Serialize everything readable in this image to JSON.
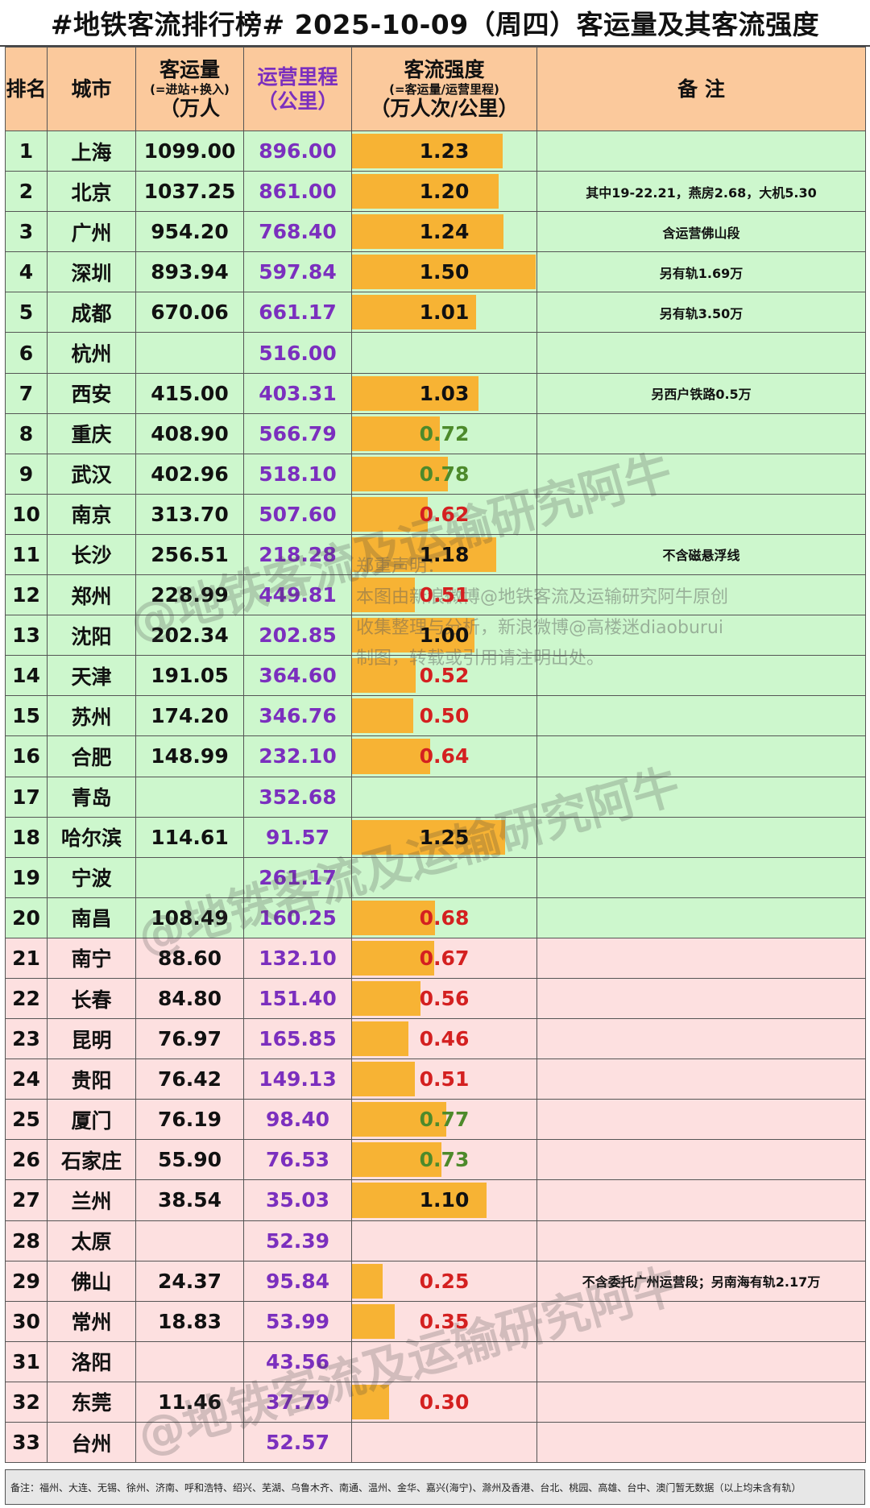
{
  "title": "#地铁客流排行榜# 2025-10-09（周四）客运量及其客流强度",
  "header": {
    "rank": "排名",
    "city": "城市",
    "ridership_l1": "客运量",
    "ridership_l2": "(=进站+换入)",
    "ridership_l3": "（万人",
    "length_l1": "运营里程",
    "length_l2": "（公里）",
    "intensity_l1": "客流强度",
    "intensity_l2": "(=客运量/运营里程)",
    "intensity_l3": "（万人次/公里）",
    "note": "备 注"
  },
  "colors": {
    "bar": "#f7b334",
    "header_bg": "#fbc99c",
    "group_top20": "#cdf7cd",
    "group_rest": "#fde0e0",
    "length_text": "#7b2fbe",
    "intensity_high": "#111111",
    "intensity_mid": "#4d8a2b",
    "intensity_low": "#d42020"
  },
  "chart_data": {
    "type": "table",
    "columns": [
      "排名",
      "城市",
      "客运量",
      "运营里程",
      "客流强度",
      "备注"
    ],
    "rows": [
      {
        "rank": "1",
        "city": "上海",
        "ridership": "1099.00",
        "length": "896.00",
        "intensity": "1.23",
        "note": ""
      },
      {
        "rank": "2",
        "city": "北京",
        "ridership": "1037.25",
        "length": "861.00",
        "intensity": "1.20",
        "note": "其中19-22.21，燕房2.68，大机5.30"
      },
      {
        "rank": "3",
        "city": "广州",
        "ridership": "954.20",
        "length": "768.40",
        "intensity": "1.24",
        "note": "含运营佛山段"
      },
      {
        "rank": "4",
        "city": "深圳",
        "ridership": "893.94",
        "length": "597.84",
        "intensity": "1.50",
        "note": "另有轨1.69万"
      },
      {
        "rank": "5",
        "city": "成都",
        "ridership": "670.06",
        "length": "661.17",
        "intensity": "1.01",
        "note": "另有轨3.50万"
      },
      {
        "rank": "6",
        "city": "杭州",
        "ridership": "",
        "length": "516.00",
        "intensity": "",
        "note": ""
      },
      {
        "rank": "7",
        "city": "西安",
        "ridership": "415.00",
        "length": "403.31",
        "intensity": "1.03",
        "note": "另西户铁路0.5万"
      },
      {
        "rank": "8",
        "city": "重庆",
        "ridership": "408.90",
        "length": "566.79",
        "intensity": "0.72",
        "note": ""
      },
      {
        "rank": "9",
        "city": "武汉",
        "ridership": "402.96",
        "length": "518.10",
        "intensity": "0.78",
        "note": ""
      },
      {
        "rank": "10",
        "city": "南京",
        "ridership": "313.70",
        "length": "507.60",
        "intensity": "0.62",
        "note": ""
      },
      {
        "rank": "11",
        "city": "长沙",
        "ridership": "256.51",
        "length": "218.28",
        "intensity": "1.18",
        "note": "不含磁悬浮线"
      },
      {
        "rank": "12",
        "city": "郑州",
        "ridership": "228.99",
        "length": "449.81",
        "intensity": "0.51",
        "note": ""
      },
      {
        "rank": "13",
        "city": "沈阳",
        "ridership": "202.34",
        "length": "202.85",
        "intensity": "1.00",
        "note": ""
      },
      {
        "rank": "14",
        "city": "天津",
        "ridership": "191.05",
        "length": "364.60",
        "intensity": "0.52",
        "note": ""
      },
      {
        "rank": "15",
        "city": "苏州",
        "ridership": "174.20",
        "length": "346.76",
        "intensity": "0.50",
        "note": ""
      },
      {
        "rank": "16",
        "city": "合肥",
        "ridership": "148.99",
        "length": "232.10",
        "intensity": "0.64",
        "note": ""
      },
      {
        "rank": "17",
        "city": "青岛",
        "ridership": "",
        "length": "352.68",
        "intensity": "",
        "note": ""
      },
      {
        "rank": "18",
        "city": "哈尔滨",
        "ridership": "114.61",
        "length": "91.57",
        "intensity": "1.25",
        "note": ""
      },
      {
        "rank": "19",
        "city": "宁波",
        "ridership": "",
        "length": "261.17",
        "intensity": "",
        "note": ""
      },
      {
        "rank": "20",
        "city": "南昌",
        "ridership": "108.49",
        "length": "160.25",
        "intensity": "0.68",
        "note": ""
      },
      {
        "rank": "21",
        "city": "南宁",
        "ridership": "88.60",
        "length": "132.10",
        "intensity": "0.67",
        "note": ""
      },
      {
        "rank": "22",
        "city": "长春",
        "ridership": "84.80",
        "length": "151.40",
        "intensity": "0.56",
        "note": ""
      },
      {
        "rank": "23",
        "city": "昆明",
        "ridership": "76.97",
        "length": "165.85",
        "intensity": "0.46",
        "note": ""
      },
      {
        "rank": "24",
        "city": "贵阳",
        "ridership": "76.42",
        "length": "149.13",
        "intensity": "0.51",
        "note": ""
      },
      {
        "rank": "25",
        "city": "厦门",
        "ridership": "76.19",
        "length": "98.40",
        "intensity": "0.77",
        "note": ""
      },
      {
        "rank": "26",
        "city": "石家庄",
        "ridership": "55.90",
        "length": "76.53",
        "intensity": "0.73",
        "note": ""
      },
      {
        "rank": "27",
        "city": "兰州",
        "ridership": "38.54",
        "length": "35.03",
        "intensity": "1.10",
        "note": ""
      },
      {
        "rank": "28",
        "city": "太原",
        "ridership": "",
        "length": "52.39",
        "intensity": "",
        "note": ""
      },
      {
        "rank": "29",
        "city": "佛山",
        "ridership": "24.37",
        "length": "95.84",
        "intensity": "0.25",
        "note": "不含委托广州运营段；另南海有轨2.17万"
      },
      {
        "rank": "30",
        "city": "常州",
        "ridership": "18.83",
        "length": "53.99",
        "intensity": "0.35",
        "note": ""
      },
      {
        "rank": "31",
        "city": "洛阳",
        "ridership": "",
        "length": "43.56",
        "intensity": "",
        "note": ""
      },
      {
        "rank": "32",
        "city": "东莞",
        "ridership": "11.46",
        "length": "37.79",
        "intensity": "0.30",
        "note": ""
      },
      {
        "rank": "33",
        "city": "台州",
        "ridership": "",
        "length": "52.57",
        "intensity": "",
        "note": ""
      }
    ],
    "intensity_bar_max": 1.5,
    "top_group_size": 20
  },
  "footnote": "备注：福州、大连、无锡、徐州、济南、呼和浩特、绍兴、芜湖、乌鲁木齐、南通、温州、金华、嘉兴(海宁)、滁州及香港、台北、桃园、高雄、台中、澳门暂无数据（以上均未含有轨）",
  "watermark": {
    "text": "@地铁客流及运输研究阿牛",
    "text_short": "@地铁客流及运输研究阿牛",
    "notice_l1": "郑重声明：",
    "notice_l2": "本图由新浪微博@地铁客流及运输研究阿牛原创",
    "notice_l3": "收集整理与分析，新浪微博@高楼迷diaoburui",
    "notice_l4": "制图，转载或引用请注明出处。"
  }
}
